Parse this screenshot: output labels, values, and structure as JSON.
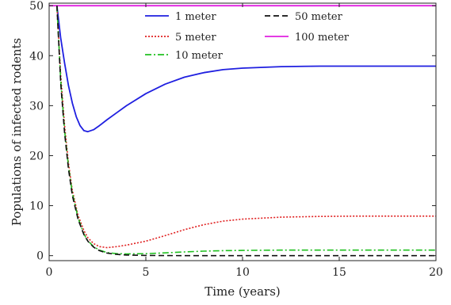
{
  "chart_data": {
    "type": "line",
    "xlabel": "Time (years)",
    "ylabel": "Populations of infected rodents",
    "xlim": [
      0,
      20
    ],
    "ylim": [
      -1,
      50.5
    ],
    "xticks": [
      0,
      5,
      10,
      15,
      20
    ],
    "yticks": [
      0,
      10,
      20,
      30,
      40,
      50
    ],
    "legend_position": "top-center",
    "grid": false,
    "series": [
      {
        "name": "1 meter",
        "color": "#1f1fe0",
        "style": "solid",
        "x": [
          0.4,
          0.6,
          0.8,
          1.0,
          1.2,
          1.4,
          1.6,
          1.8,
          2.0,
          2.3,
          2.6,
          3.0,
          3.5,
          4.0,
          5.0,
          6.0,
          7.0,
          8.0,
          9.0,
          10.0,
          12.0,
          14.0,
          16.0,
          18.0,
          20.0
        ],
        "y": [
          50,
          43.5,
          38.5,
          34.0,
          30.5,
          27.8,
          26.0,
          25.0,
          24.8,
          25.2,
          26.0,
          27.2,
          28.6,
          30.0,
          32.4,
          34.3,
          35.7,
          36.6,
          37.2,
          37.5,
          37.8,
          37.9,
          37.9,
          37.9,
          37.9
        ]
      },
      {
        "name": "5 meter",
        "color": "#e02020",
        "style": "dotted",
        "x": [
          0.4,
          0.6,
          0.8,
          1.0,
          1.2,
          1.5,
          1.8,
          2.0,
          2.3,
          2.6,
          3.0,
          3.5,
          4.0,
          5.0,
          6.0,
          7.0,
          8.0,
          9.0,
          10.0,
          12.0,
          14.0,
          16.0,
          18.0,
          20.0
        ],
        "y": [
          50,
          36.0,
          26.0,
          18.5,
          13.0,
          8.0,
          5.0,
          3.6,
          2.4,
          1.8,
          1.6,
          1.8,
          2.1,
          2.9,
          4.0,
          5.2,
          6.2,
          6.9,
          7.3,
          7.7,
          7.85,
          7.9,
          7.9,
          7.9
        ]
      },
      {
        "name": "10 meter",
        "color": "#20c020",
        "style": "dashdot",
        "x": [
          0.4,
          0.6,
          0.8,
          1.0,
          1.2,
          1.5,
          1.8,
          2.0,
          2.3,
          2.6,
          3.0,
          3.5,
          4.0,
          5.0,
          6.0,
          7.0,
          8.0,
          9.0,
          10.0,
          12.0,
          14.0,
          16.0,
          18.0,
          20.0
        ],
        "y": [
          50,
          35.0,
          25.0,
          17.8,
          12.5,
          7.5,
          4.3,
          3.0,
          1.8,
          1.1,
          0.6,
          0.4,
          0.35,
          0.4,
          0.55,
          0.75,
          0.9,
          1.0,
          1.05,
          1.1,
          1.1,
          1.1,
          1.1,
          1.1
        ]
      },
      {
        "name": "50 meter",
        "color": "#111111",
        "style": "dashed",
        "x": [
          0.4,
          0.6,
          0.8,
          1.0,
          1.2,
          1.5,
          1.8,
          2.0,
          2.3,
          2.6,
          3.0,
          3.5,
          4.0,
          5.0,
          6.0,
          8.0,
          10.0,
          12.0,
          15.0,
          20.0
        ],
        "y": [
          50,
          34.5,
          24.5,
          17.3,
          12.0,
          7.2,
          4.2,
          2.9,
          1.7,
          1.0,
          0.5,
          0.25,
          0.12,
          0.04,
          0.02,
          0.0,
          0.0,
          0.0,
          0.0,
          0.0
        ]
      },
      {
        "name": "100 meter",
        "color": "#e020e0",
        "style": "solid",
        "x": [
          0,
          20
        ],
        "y": [
          50,
          50
        ]
      }
    ],
    "legend_order": [
      "1 meter",
      "50 meter",
      "5 meter",
      "100 meter",
      "10 meter"
    ]
  }
}
